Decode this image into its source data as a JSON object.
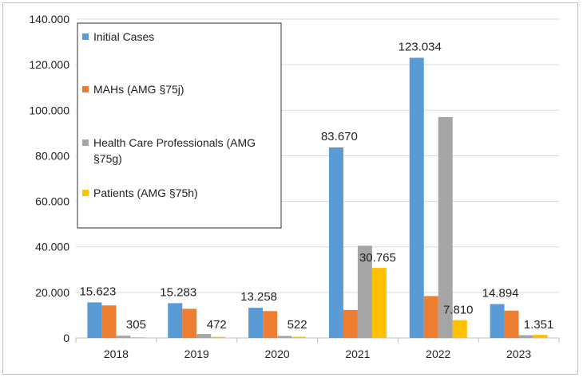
{
  "chart_data": {
    "type": "bar",
    "categories": [
      "2018",
      "2019",
      "2020",
      "2021",
      "2022",
      "2023"
    ],
    "series": [
      {
        "name": "Initial Cases",
        "color": "#5b9bd5",
        "values": [
          15623,
          15283,
          13258,
          83670,
          123034,
          14894
        ]
      },
      {
        "name": "MAHs (AMG §75j)",
        "color": "#ed7d31",
        "values": [
          14300,
          12800,
          11800,
          12300,
          18400,
          12000
        ]
      },
      {
        "name": "Health Care Professionals (AMG §75g)",
        "color": "#a5a5a5",
        "values": [
          1000,
          1700,
          900,
          40500,
          97000,
          1200
        ]
      },
      {
        "name": "Patients (AMG §75h)",
        "color": "#ffc000",
        "values": [
          305,
          472,
          522,
          30765,
          7810,
          1351
        ]
      }
    ],
    "data_labels": [
      {
        "category": "2018",
        "text": "15.623"
      },
      {
        "category": "2018",
        "text": "305"
      },
      {
        "category": "2019",
        "text": "15.283"
      },
      {
        "category": "2019",
        "text": "472"
      },
      {
        "category": "2020",
        "text": "13.258"
      },
      {
        "category": "2020",
        "text": "522"
      },
      {
        "category": "2021",
        "text": "83.670"
      },
      {
        "category": "2021",
        "text": "30.765"
      },
      {
        "category": "2022",
        "text": "123.034"
      },
      {
        "category": "2022",
        "text": "7.810"
      },
      {
        "category": "2023",
        "text": "14.894"
      },
      {
        "category": "2023",
        "text": "1.351"
      }
    ],
    "y_ticks": [
      "0",
      "20.000",
      "40.000",
      "60.000",
      "80.000",
      "100.000",
      "120.000",
      "140.000"
    ],
    "ylim": [
      0,
      140000
    ],
    "grid": true,
    "legend_position": "top-left",
    "title": "",
    "xlabel": "",
    "ylabel": ""
  }
}
